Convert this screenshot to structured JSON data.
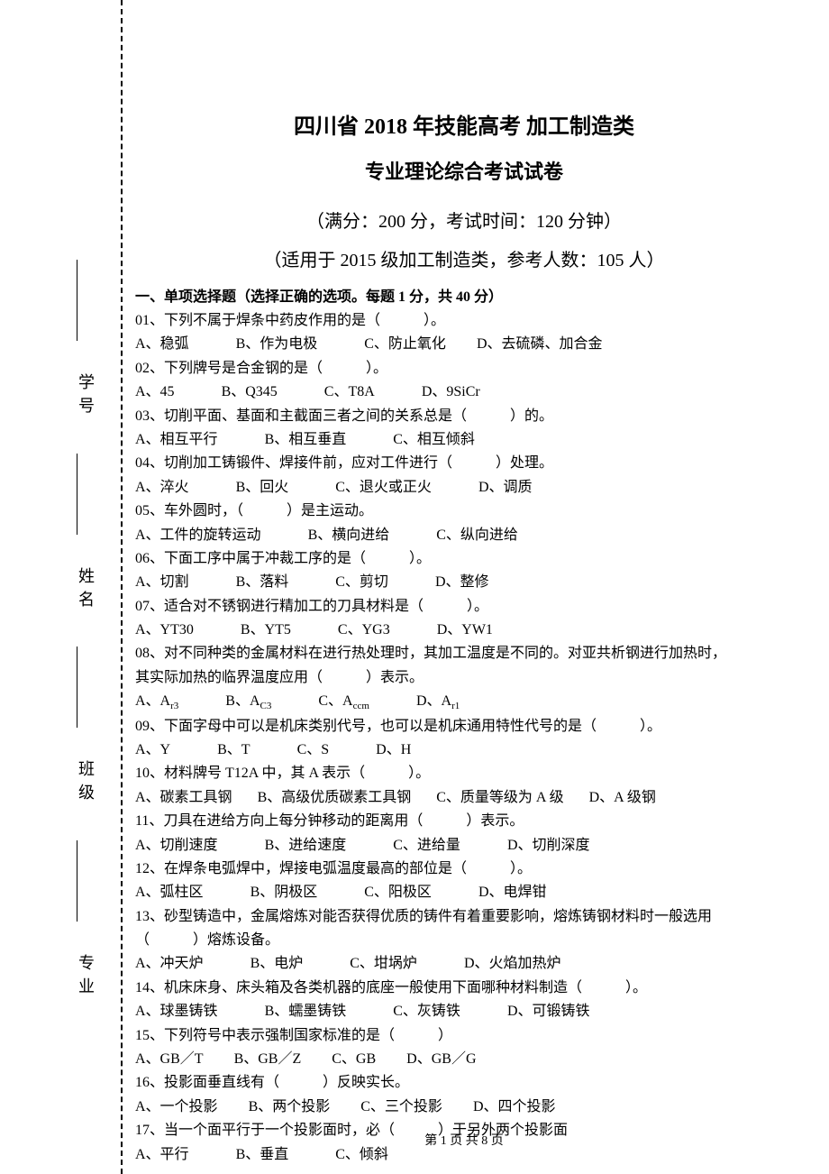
{
  "binding": {
    "labels": [
      "学号",
      "姓名",
      "班级",
      "专业"
    ]
  },
  "header": {
    "title_main": "四川省 2018 年技能高考 加工制造类",
    "title_sub": "专业理论综合考试试卷",
    "meta1": "（满分：200 分，考试时间：120 分钟）",
    "meta2": "（适用于 2015 级加工制造类，参考人数：105 人）"
  },
  "section1": {
    "title": "一、单项选择题（选择正确的选项。每题 1 分，共 40 分）"
  },
  "questions": {
    "q01": {
      "text": "01、下列不属于焊条中药皮作用的是（　　　）。",
      "a": "A、稳弧",
      "b": "B、作为电极",
      "c": "C、防止氧化",
      "d": "D、去硫磷、加合金"
    },
    "q02": {
      "text": "02、下列牌号是合金钢的是（　　　）。",
      "a": "A、45",
      "b": "B、Q345",
      "c": "C、T8A",
      "d": "D、9SiCr"
    },
    "q03": {
      "text": "03、切削平面、基面和主截面三者之间的关系总是（　　　）的。",
      "a": "A、相互平行",
      "b": "B、相互垂直",
      "c": "C、相互倾斜"
    },
    "q04": {
      "text": "04、切削加工铸锻件、焊接件前，应对工件进行（　　　）处理。",
      "a": "A、淬火",
      "b": "B、回火",
      "c": "C、退火或正火",
      "d": "D、调质"
    },
    "q05": {
      "text": "05、车外圆时，（　　　）是主运动。",
      "a": "A、工件的旋转运动",
      "b": "B、横向进给",
      "c": "C、纵向进给"
    },
    "q06": {
      "text": "06、下面工序中属于冲裁工序的是（　　　）。",
      "a": "A、切割",
      "b": "B、落料",
      "c": "C、剪切",
      "d": "D、整修"
    },
    "q07": {
      "text": "07、适合对不锈钢进行精加工的刀具材料是（　　　）。",
      "a": "A、YT30",
      "b": "B、YT5",
      "c": "C、YG3",
      "d": "D、YW1"
    },
    "q08": {
      "text1": "08、对不同种类的金属材料在进行热处理时，其加工温度是不同的。对亚共析钢进行加热时，",
      "text2": "其实际加热的临界温度应用（　　　）表示。",
      "a_pre": "A、A",
      "a_sub": "r3",
      "b_pre": "B、A",
      "b_sub": "C3",
      "c_pre": "C、A",
      "c_sub": "ccm",
      "d_pre": "D、A",
      "d_sub": "r1"
    },
    "q09": {
      "text": "09、下面字母中可以是机床类别代号，也可以是机床通用特性代号的是（　　　）。",
      "a": "A、Y",
      "b": "B、T",
      "c": "C、S",
      "d": "D、H"
    },
    "q10": {
      "text": "10、材料牌号 T12A 中，其 A 表示（　　　）。",
      "a": "A、碳素工具钢",
      "b": "B、高级优质碳素工具钢",
      "c": "C、质量等级为 A 级",
      "d": "D、A 级钢"
    },
    "q11": {
      "text": "11、刀具在进给方向上每分钟移动的距离用（　　　）表示。",
      "a": "A、切削速度",
      "b": "B、进给速度",
      "c": "C、进给量",
      "d": "D、切削深度"
    },
    "q12": {
      "text": "12、在焊条电弧焊中，焊接电弧温度最高的部位是（　　　）。",
      "a": "A、弧柱区",
      "b": "B、阴极区",
      "c": "C、阳极区",
      "d": "D、电焊钳"
    },
    "q13": {
      "text1": "13、砂型铸造中，金属熔炼对能否获得优质的铸件有着重要影响，熔炼铸钢材料时一般选用",
      "text2": "（　　　）熔炼设备。",
      "a": "A、冲天炉",
      "b": "B、电炉",
      "c": "C、坩埚炉",
      "d": "D、火焰加热炉"
    },
    "q14": {
      "text": "14、机床床身、床头箱及各类机器的底座一般使用下面哪种材料制造（　　　）。",
      "a": "A、球墨铸铁",
      "b": "B、蠕墨铸铁",
      "c": "C、灰铸铁",
      "d": "D、可锻铸铁"
    },
    "q15": {
      "text": "15、下列符号中表示强制国家标准的是（　　　）",
      "a": "A、GB／T",
      "b": "B、GB／Z",
      "c": "C、GB",
      "d": "D、GB／G"
    },
    "q16": {
      "text": "16、投影面垂直线有（　　　）反映实长。",
      "a": "A、一个投影",
      "b": "B、两个投影",
      "c": "C、三个投影",
      "d": "D、四个投影"
    },
    "q17": {
      "text": "17、当一个面平行于一个投影面时，必（　　　）于另外两个投影面",
      "a": "A、平行",
      "b": "B、垂直",
      "c": "C、倾斜"
    }
  },
  "footer": {
    "text": "第 1 页 共 8 页"
  }
}
